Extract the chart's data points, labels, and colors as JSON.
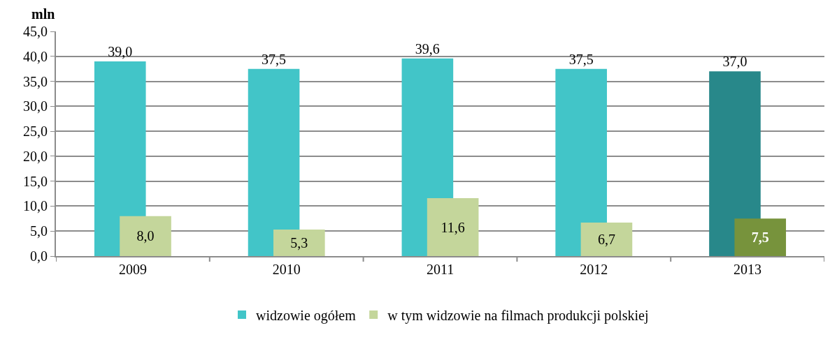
{
  "chart_data": {
    "type": "bar",
    "ylabel": "mln",
    "categories": [
      "2009",
      "2010",
      "2011",
      "2012",
      "2013"
    ],
    "series": [
      {
        "name": "widzowie ogółem",
        "color": "#42c5c8",
        "colors": [
          null,
          null,
          null,
          null,
          "#28888a"
        ],
        "values": [
          39.0,
          37.5,
          39.6,
          37.5,
          37.0
        ],
        "value_labels": [
          "39,0",
          "37,5",
          "39,6",
          "37,5",
          "37,0"
        ]
      },
      {
        "name": "w tym widzowie na filmach produkcji polskiej",
        "color": "#c4d69b",
        "colors": [
          null,
          null,
          null,
          null,
          "#77933c"
        ],
        "values": [
          8.0,
          5.3,
          11.6,
          6.7,
          7.5
        ],
        "value_labels": [
          "8,0",
          "5,3",
          "11,6",
          "6,7",
          "7,5"
        ]
      }
    ],
    "ylim": [
      0,
      45
    ],
    "yticks": [
      {
        "value": 0,
        "label": "0,0"
      },
      {
        "value": 5,
        "label": "5,0"
      },
      {
        "value": 10,
        "label": "10,0"
      },
      {
        "value": 15,
        "label": "15,0"
      },
      {
        "value": 20,
        "label": "20,0"
      },
      {
        "value": 25,
        "label": "25,0"
      },
      {
        "value": 30,
        "label": "30,0"
      },
      {
        "value": 35,
        "label": "35,0"
      },
      {
        "value": 40,
        "label": "40,0"
      },
      {
        "value": 45,
        "label": "45,0"
      }
    ],
    "grid": "y",
    "legend": "bottom"
  }
}
